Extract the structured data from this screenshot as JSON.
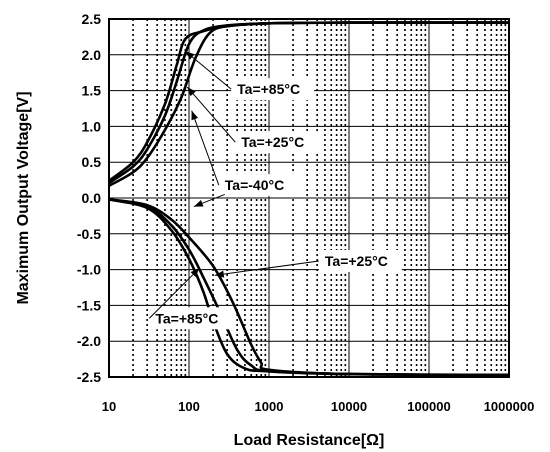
{
  "chart_data": {
    "type": "line",
    "title": "",
    "xlabel": "Load Resistance[Ω]",
    "ylabel": "Maximum Output Voltage[V]",
    "x_scale": "log",
    "xlim": [
      10,
      1000000
    ],
    "ylim": [
      -2.5,
      2.5
    ],
    "x_ticks": [
      "10",
      "100",
      "1000",
      "10000",
      "100000",
      "1000000"
    ],
    "y_ticks": [
      "2.5",
      "2.0",
      "1.5",
      "1.0",
      "0.5",
      "0.0",
      "-0.5",
      "-1.0",
      "-1.5",
      "-2.0",
      "-2.5"
    ],
    "y_tick_values": [
      2.5,
      2.0,
      1.5,
      1.0,
      0.5,
      0.0,
      -0.5,
      -1.0,
      -1.5,
      -2.0,
      -2.5
    ],
    "grid": true,
    "series": [
      {
        "x": [
          10,
          20,
          30,
          50,
          70,
          90,
          150,
          300,
          1000,
          10000,
          1000000
        ],
        "y": [
          0.24,
          0.5,
          0.78,
          1.31,
          1.85,
          2.22,
          2.33,
          2.4,
          2.44,
          2.45,
          2.45
        ]
      },
      {
        "x": [
          10,
          20,
          30,
          50,
          70,
          100,
          150,
          300,
          1000,
          10000,
          1000000
        ],
        "y": [
          0.21,
          0.44,
          0.68,
          1.15,
          1.62,
          2.15,
          2.34,
          2.41,
          2.44,
          2.45,
          2.45
        ]
      },
      {
        "x": [
          10,
          20,
          30,
          50,
          80,
          120,
          180,
          300,
          1000,
          10000,
          1000000
        ],
        "y": [
          0.17,
          0.36,
          0.56,
          0.95,
          1.4,
          1.95,
          2.3,
          2.4,
          2.44,
          2.45,
          2.45
        ]
      },
      {
        "x": [
          10,
          30,
          60,
          100,
          150,
          200,
          300,
          500,
          1000,
          10000,
          1000000
        ],
        "y": [
          -0.02,
          -0.14,
          -0.45,
          -0.85,
          -1.3,
          -1.72,
          -2.18,
          -2.38,
          -2.42,
          -2.46,
          -2.47
        ]
      },
      {
        "x": [
          10,
          30,
          60,
          100,
          150,
          250,
          400,
          600,
          1000,
          10000,
          1000000
        ],
        "y": [
          -0.02,
          -0.12,
          -0.38,
          -0.72,
          -1.1,
          -1.62,
          -2.12,
          -2.34,
          -2.42,
          -2.46,
          -2.47
        ]
      },
      {
        "x": [
          10,
          30,
          60,
          100,
          200,
          350,
          600,
          800,
          1000,
          10000,
          1000000
        ],
        "y": [
          -0.02,
          -0.1,
          -0.3,
          -0.55,
          -0.95,
          -1.45,
          -2.05,
          -2.3,
          -2.4,
          -2.46,
          -2.47
        ]
      }
    ],
    "annotations": [
      {
        "text": "Ta=+85°C",
        "tx": 400,
        "ty": 1.52,
        "ax": 90,
        "ay": 2.05
      },
      {
        "text": "Ta=+25°C",
        "tx": 450,
        "ty": 0.78,
        "ax": 95,
        "ay": 1.55
      },
      {
        "text": "Ta=-40°C",
        "tx": 280,
        "ty": 0.18,
        "ax": 108,
        "ay": 1.22
      },
      {
        "text": "Ta=+25°C",
        "tx": 5000,
        "ty": -0.88,
        "ax": 210,
        "ay": -1.08
      },
      {
        "text": "Ta=+85°C",
        "tx": 38,
        "ty": -1.68,
        "ax": 135,
        "ay": -0.98
      }
    ],
    "extra_arrows": [
      {
        "from_x": 280,
        "from_y": 0.05,
        "to_x": 115,
        "to_y": -0.12
      }
    ]
  }
}
